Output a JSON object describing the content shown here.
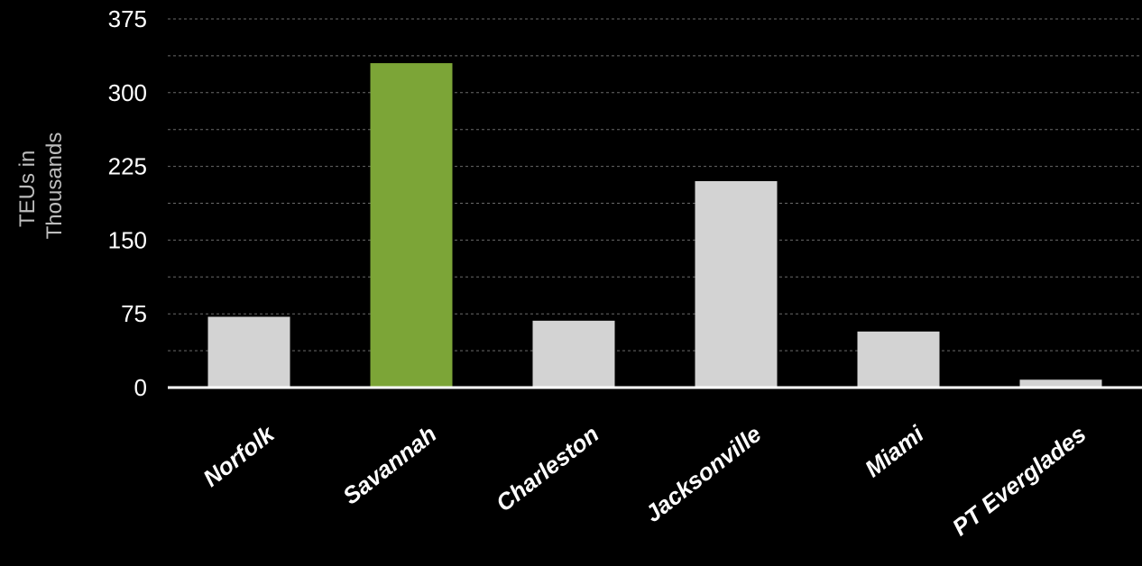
{
  "chart_data": {
    "type": "bar",
    "title": "",
    "xlabel": "",
    "ylabel": "TEUs in Thousands",
    "ylabel_lines": [
      "TEUs in",
      "Thousands"
    ],
    "categories": [
      "Norfolk",
      "Savannah",
      "Charleston",
      "Jacksonville",
      "Miami",
      "PT Everglades"
    ],
    "values": [
      72,
      330,
      68,
      210,
      57,
      8
    ],
    "ylim": [
      0,
      375
    ],
    "yticks": [
      0,
      75,
      150,
      225,
      300,
      375
    ],
    "grid": true,
    "highlight_category": "Savannah",
    "colors": {
      "background": "#000000",
      "bar_default": "#d3d3d3",
      "bar_highlight": "#7ca537",
      "grid": "#6a6a6a",
      "axis": "#ffffff",
      "text": "#ffffff"
    }
  }
}
